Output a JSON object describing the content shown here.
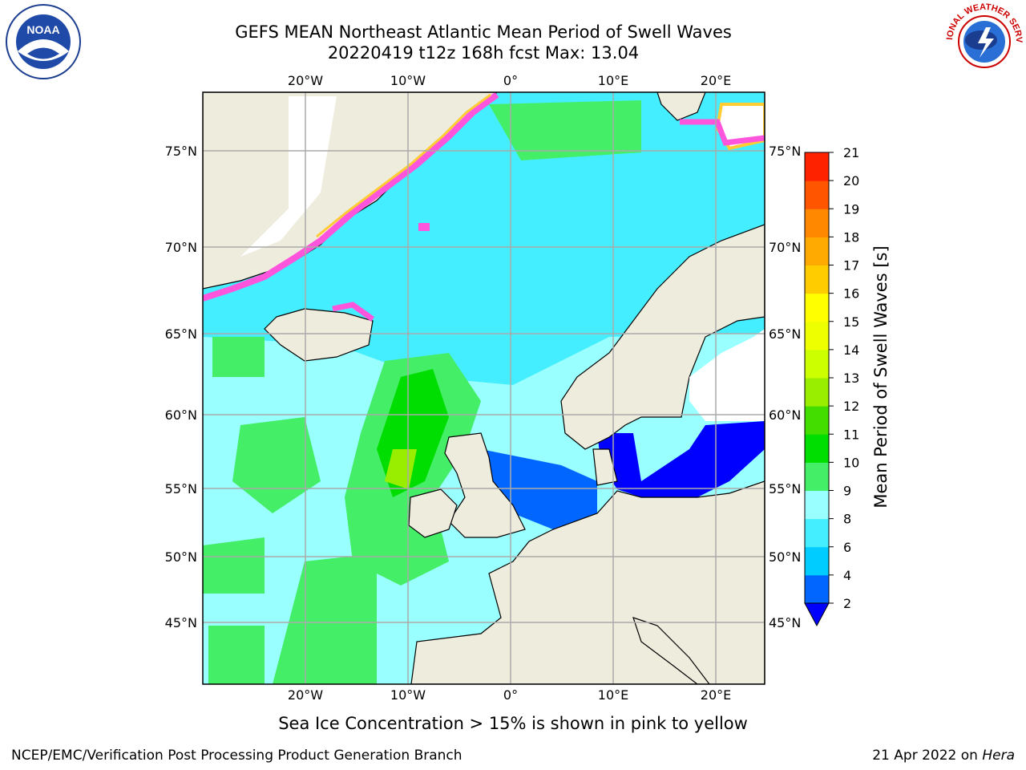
{
  "header": {
    "title_line1": "GEFS MEAN Northeast Atlantic Mean Period of Swell Waves",
    "title_line2": "20220419 t12z 168h fcst   Max: 13.04"
  },
  "map": {
    "lon_labels": [
      "20°W",
      "10°W",
      "0°",
      "10°E",
      "20°E"
    ],
    "lat_labels": [
      "75°N",
      "70°N",
      "65°N",
      "60°N",
      "55°N",
      "50°N",
      "45°N"
    ]
  },
  "colorbar": {
    "title": "Mean Period of Swell Waves [s]",
    "tick_labels": [
      "2",
      "4",
      "6",
      "8",
      "9",
      "10",
      "11",
      "12",
      "13",
      "14",
      "15",
      "16",
      "17",
      "18",
      "19",
      "20",
      "21"
    ],
    "colors": [
      "#0066ff",
      "#00ccff",
      "#44eeff",
      "#99ffff",
      "#44ee66",
      "#00dd00",
      "#44dd00",
      "#99ee00",
      "#ccff00",
      "#eeff00",
      "#ffff00",
      "#ffcc00",
      "#ffaa00",
      "#ff8800",
      "#ff5500",
      "#ff2200"
    ],
    "under_color": "#0000ff"
  },
  "caption": "Sea Ice Concentration > 15% is shown in pink to yellow",
  "footer": {
    "left": "NCEP/EMC/Verification Post Processing Product Generation Branch",
    "right_date": "21 Apr 2022 on ",
    "right_host": "Hera"
  },
  "logos": {
    "noaa_text": "NOAA",
    "nws_text": "NATIONAL WEATHER SERVICE"
  }
}
